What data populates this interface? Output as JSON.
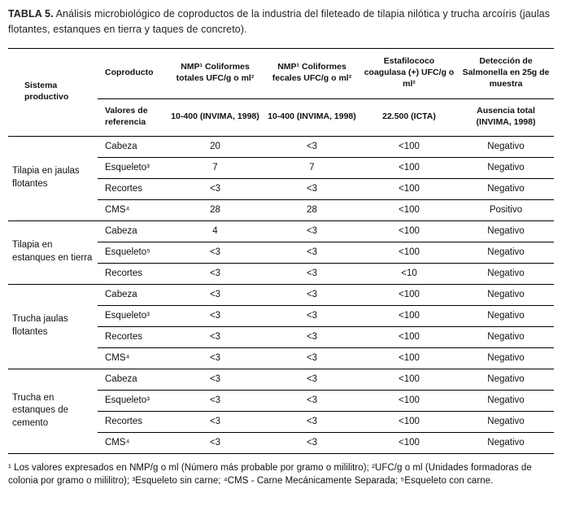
{
  "caption": {
    "label": "TABLA 5.",
    "text": "Análisis microbiológico de coproductos de la industria del fileteado de tilapia nilótica y trucha arcoíris (jaulas flotantes, estanques en tierra y taques de concreto)."
  },
  "table": {
    "headers": {
      "sistema": "Sistema productivo",
      "coproducto": "Coproducto",
      "totales": "NMP¹ Coliformes totales UFC/g o ml²",
      "fecales": "NMP¹ Coliformes fecales UFC/g o ml²",
      "estafilococo": "Estafilococo coagulasa (+) UFC/g o ml²",
      "salmonella": "Detección de Salmonella en 25g de muestra"
    },
    "reference": {
      "label": "Valores de referencia",
      "totales": "10-400 (INVIMA, 1998)",
      "fecales": "10-400 (INVIMA, 1998)",
      "estafilococo": "22.500 (ICTA)",
      "salmonella": "Ausencia total (INVIMA, 1998)"
    },
    "groups": [
      {
        "system": "Tilapia en jaulas flotantes",
        "rows": [
          {
            "coproducto": "Cabeza",
            "totales": "20",
            "fecales": "<3",
            "estafilococo": "<100",
            "salmonella": "Negativo"
          },
          {
            "coproducto": "Esqueleto³",
            "totales": "7",
            "fecales": "7",
            "estafilococo": "<100",
            "salmonella": "Negativo"
          },
          {
            "coproducto": "Recortes",
            "totales": "<3",
            "fecales": "<3",
            "estafilococo": "<100",
            "salmonella": "Negativo"
          },
          {
            "coproducto": "CMS⁴",
            "totales": "28",
            "fecales": "28",
            "estafilococo": "<100",
            "salmonella": "Positivo"
          }
        ]
      },
      {
        "system": "Tilapia en estanques en tierra",
        "rows": [
          {
            "coproducto": "Cabeza",
            "totales": "4",
            "fecales": "<3",
            "estafilococo": "<100",
            "salmonella": "Negativo"
          },
          {
            "coproducto": "Esqueleto⁵",
            "totales": "<3",
            "fecales": "<3",
            "estafilococo": "<100",
            "salmonella": "Negativo"
          },
          {
            "coproducto": "Recortes",
            "totales": "<3",
            "fecales": "<3",
            "estafilococo": "<10",
            "salmonella": "Negativo"
          }
        ]
      },
      {
        "system": "Trucha jaulas flotantes",
        "rows": [
          {
            "coproducto": "Cabeza",
            "totales": "<3",
            "fecales": "<3",
            "estafilococo": "<100",
            "salmonella": "Negativo"
          },
          {
            "coproducto": "Esqueleto³",
            "totales": "<3",
            "fecales": "<3",
            "estafilococo": "<100",
            "salmonella": "Negativo"
          },
          {
            "coproducto": "Recortes",
            "totales": "<3",
            "fecales": "<3",
            "estafilococo": "<100",
            "salmonella": "Negativo"
          },
          {
            "coproducto": "CMS⁴",
            "totales": "<3",
            "fecales": "<3",
            "estafilococo": "<100",
            "salmonella": "Negativo"
          }
        ]
      },
      {
        "system": "Trucha en estanques de cemento",
        "rows": [
          {
            "coproducto": "Cabeza",
            "totales": "<3",
            "fecales": "<3",
            "estafilococo": "<100",
            "salmonella": "Negativo"
          },
          {
            "coproducto": "Esqueleto³",
            "totales": "<3",
            "fecales": "<3",
            "estafilococo": "<100",
            "salmonella": "Negativo"
          },
          {
            "coproducto": "Recortes",
            "totales": "<3",
            "fecales": "<3",
            "estafilococo": "<100",
            "salmonella": "Negativo"
          },
          {
            "coproducto": "CMS⁴",
            "totales": "<3",
            "fecales": "<3",
            "estafilococo": "<100",
            "salmonella": "Negativo"
          }
        ]
      }
    ]
  },
  "footnotes": "¹ Los valores expresados en NMP/g o ml (Número más probable por gramo o mililitro); ²UFC/g o ml (Unidades formadoras de colonia por gramo o mililitro); ³Esqueleto sin carne; ⁴CMS - Carne Mecánicamente Separada; ⁵Esqueleto con carne."
}
